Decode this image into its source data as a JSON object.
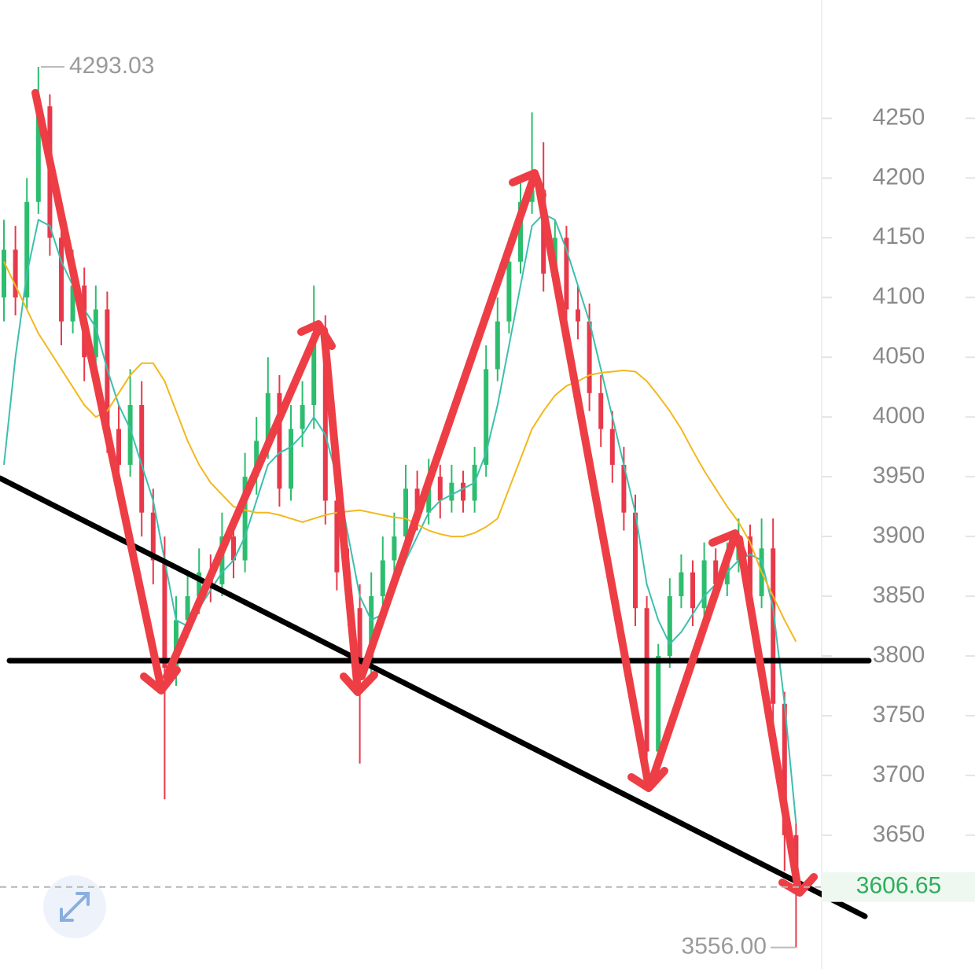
{
  "chart_data": {
    "type": "candlestick",
    "ylim": [
      3538,
      4349
    ],
    "yticks": [
      3650,
      3700,
      3750,
      3800,
      3850,
      3900,
      3950,
      4000,
      4050,
      4100,
      4150,
      4200,
      4250
    ],
    "open": [
      4100,
      4140,
      4100,
      4180,
      4260,
      4150,
      4080,
      4110,
      4050,
      4090,
      3990,
      3960,
      4010,
      3920,
      3880,
      3790,
      3830,
      3850,
      3870,
      3860,
      3900,
      3880,
      3950,
      3980,
      4020,
      3940,
      3990,
      4010,
      4070,
      3930,
      3870,
      3840,
      3790,
      3850,
      3880,
      3900,
      3940,
      3920,
      3950,
      3930,
      3945,
      3930,
      3960,
      4040,
      4080,
      4130,
      4180,
      4190,
      4120,
      4150,
      4090,
      4080,
      4020,
      3990,
      3960,
      3920,
      3840,
      3720,
      3800,
      3850,
      3870,
      3840,
      3880,
      3860,
      3880,
      3900,
      3850,
      3890,
      3760,
      3650
    ],
    "high": [
      4165,
      4160,
      4200,
      4293.03,
      4270,
      4170,
      4140,
      4125,
      4110,
      4105,
      4010,
      4040,
      4030,
      3940,
      3900,
      3850,
      3870,
      3890,
      3885,
      3920,
      3915,
      3970,
      4000,
      4050,
      4035,
      4010,
      4030,
      4110,
      4085,
      3950,
      3890,
      3860,
      3870,
      3900,
      3920,
      3960,
      3955,
      3965,
      3960,
      3960,
      3955,
      3975,
      4060,
      4100,
      4150,
      4200,
      4255,
      4230,
      4165,
      4160,
      4110,
      4095,
      4035,
      4005,
      3975,
      3935,
      3850,
      3810,
      3865,
      3885,
      3880,
      3895,
      3890,
      3895,
      3915,
      3910,
      3915,
      3915,
      3770,
      3660
    ],
    "low": [
      4080,
      4085,
      4090,
      4170,
      4135,
      4060,
      4070,
      4030,
      4040,
      3970,
      3940,
      3950,
      3900,
      3860,
      3680,
      3775,
      3815,
      3835,
      3845,
      3850,
      3865,
      3870,
      3935,
      3965,
      3925,
      3930,
      3975,
      3990,
      3910,
      3855,
      3825,
      3710,
      3780,
      3835,
      3865,
      3890,
      3905,
      3910,
      3915,
      3920,
      3920,
      3920,
      3950,
      4030,
      4070,
      4120,
      4170,
      4105,
      4110,
      4075,
      4065,
      4005,
      3975,
      3945,
      3905,
      3825,
      3690,
      3710,
      3790,
      3840,
      3825,
      3830,
      3845,
      3850,
      3870,
      3840,
      3840,
      3745,
      3620,
      3556
    ],
    "close": [
      4140,
      4100,
      4180,
      4260,
      4150,
      4080,
      4110,
      4050,
      4090,
      3990,
      3960,
      4010,
      3920,
      3880,
      3790,
      3830,
      3850,
      3870,
      3860,
      3900,
      3880,
      3950,
      3980,
      4020,
      3940,
      3990,
      4010,
      4070,
      3930,
      3870,
      3840,
      3790,
      3850,
      3880,
      3900,
      3940,
      3920,
      3950,
      3930,
      3945,
      3930,
      3960,
      4040,
      4080,
      4130,
      4180,
      4190,
      4120,
      4150,
      4090,
      4080,
      4020,
      3990,
      3960,
      3920,
      3840,
      3720,
      3800,
      3850,
      3870,
      3840,
      3880,
      3860,
      3880,
      3900,
      3850,
      3890,
      3760,
      3650,
      3607
    ],
    "up_color": "#2dbd6e",
    "down_color": "#e8394a",
    "lines": [
      {
        "color": "#3dbfae",
        "values": [
          3960,
          4050,
          4120,
          4165,
          4160,
          4130,
          4110,
          4090,
          4075,
          4040,
          4010,
          3990,
          3960,
          3930,
          3880,
          3830,
          3825,
          3840,
          3855,
          3870,
          3880,
          3900,
          3930,
          3960,
          3970,
          3975,
          3985,
          4000,
          3985,
          3950,
          3900,
          3850,
          3830,
          3835,
          3855,
          3880,
          3900,
          3920,
          3930,
          3935,
          3940,
          3945,
          3970,
          4010,
          4060,
          4110,
          4160,
          4170,
          4165,
          4140,
          4110,
          4080,
          4040,
          4000,
          3960,
          3920,
          3860,
          3830,
          3810,
          3820,
          3835,
          3850,
          3860,
          3870,
          3880,
          3885,
          3880,
          3840,
          3760,
          3660
        ]
      },
      {
        "color": "#f2b81e",
        "values": [
          4130,
          4110,
          4090,
          4070,
          4055,
          4040,
          4025,
          4010,
          4000,
          4005,
          4020,
          4035,
          4045,
          4045,
          4030,
          4005,
          3980,
          3960,
          3945,
          3935,
          3925,
          3922,
          3920,
          3920,
          3918,
          3915,
          3912,
          3915,
          3918,
          3920,
          3921,
          3922,
          3920,
          3918,
          3916,
          3915,
          3910,
          3905,
          3902,
          3900,
          3900,
          3903,
          3908,
          3915,
          3940,
          3965,
          3990,
          4005,
          4018,
          4026,
          4030,
          4035,
          4037,
          4038,
          4039,
          4038,
          4030,
          4018,
          4005,
          3990,
          3972,
          3955,
          3940,
          3925,
          3912,
          3895,
          3870,
          3850,
          3830,
          3812
        ]
      }
    ],
    "max_marker": 4293.03,
    "min_marker": {
      "value": 3556,
      "label": "3556.00"
    },
    "last_price": 3606.65,
    "last_price_color": "#2eae5a"
  }
}
